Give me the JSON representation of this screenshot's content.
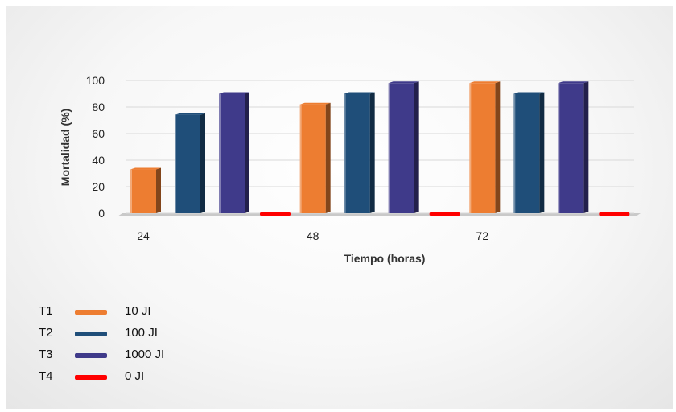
{
  "chart_data": {
    "type": "bar",
    "categories": [
      "24",
      "48",
      "72"
    ],
    "series": [
      {
        "code": "T1",
        "name": "10 JI",
        "color": "#ED7D31",
        "values": [
          33,
          82,
          98
        ]
      },
      {
        "code": "T2",
        "name": "100 JI",
        "color": "#1F4E79",
        "values": [
          74,
          90,
          90
        ]
      },
      {
        "code": "T3",
        "name": "1000 JI",
        "color": "#3F3A8A",
        "values": [
          90,
          98,
          98
        ]
      },
      {
        "code": "T4",
        "name": "0 JI",
        "color": "#FF0000",
        "values": [
          0,
          0,
          0
        ]
      }
    ],
    "xlabel": "Tiempo (horas)",
    "ylabel": "Mortalidad  (%)",
    "ylim": [
      0,
      100
    ],
    "yticks": [
      0,
      20,
      40,
      60,
      80,
      100
    ],
    "grid": true,
    "legend_position": "bottom-left"
  }
}
